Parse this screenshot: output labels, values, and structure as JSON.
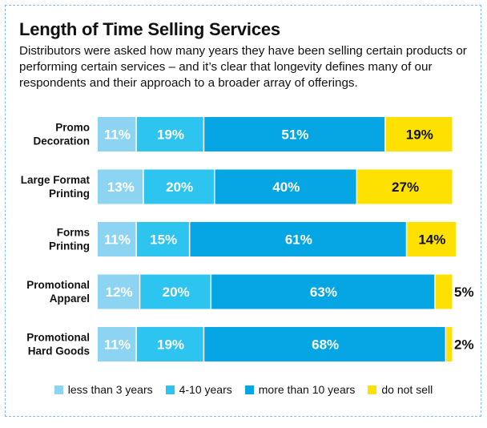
{
  "chart_data": {
    "type": "bar",
    "orientation": "horizontal",
    "stacked": true,
    "title": "Length of Time Selling Services",
    "subtitle": "Distributors were asked how many years they have been selling certain products or performing certain services – and it’s clear that longevity defines many of our respondents and their approach to a broader array of offerings.",
    "categories": [
      [
        "Promo",
        "Decoration"
      ],
      [
        "Large Format",
        "Printing"
      ],
      [
        "Forms",
        "Printing"
      ],
      [
        "Promotional",
        "Apparel"
      ],
      [
        "Promotional",
        "Hard Goods"
      ]
    ],
    "series": [
      {
        "name": "less than 3 years",
        "color": "#8dd3f2",
        "values": [
          11,
          13,
          11,
          12,
          11
        ]
      },
      {
        "name": "4-10 years",
        "color": "#2ec4f0",
        "values": [
          19,
          20,
          15,
          20,
          19
        ]
      },
      {
        "name": "more than 10 years",
        "color": "#05a6e3",
        "values": [
          51,
          40,
          61,
          63,
          68
        ]
      },
      {
        "name": "do not sell",
        "color": "#ffe100",
        "values": [
          19,
          27,
          14,
          5,
          2
        ]
      }
    ],
    "value_suffix": "%",
    "xlim": [
      0,
      100
    ],
    "grid": false,
    "legend_position": "bottom"
  }
}
